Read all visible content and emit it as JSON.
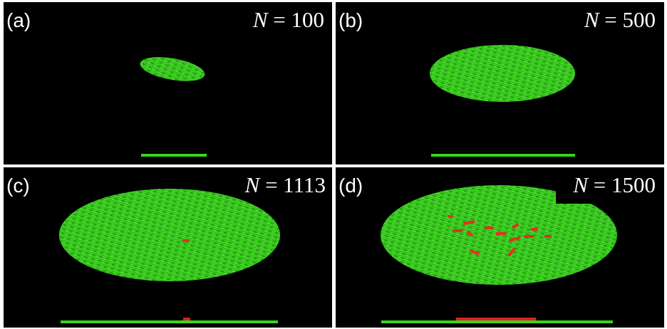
{
  "symbol": "N",
  "equals": "=",
  "panels": [
    {
      "label": "(a)",
      "count": 100
    },
    {
      "label": "(b)",
      "count": 500
    },
    {
      "label": "(c)",
      "count": 1113
    },
    {
      "label": "(d)",
      "count": 1500
    }
  ]
}
